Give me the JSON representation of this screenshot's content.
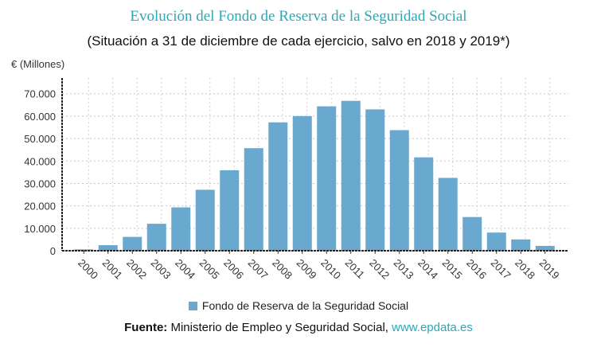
{
  "chart_data": {
    "type": "bar",
    "title": "Evolución del Fondo de Reserva de la Seguridad Social",
    "subtitle": "(Situación a 31 de diciembre de cada ejercicio, salvo en 2018 y 2019*)",
    "ylabel": "€ (Millones)",
    "xlabel": "",
    "categories": [
      "2000",
      "2001",
      "2002",
      "2003",
      "2004",
      "2005",
      "2006",
      "2007",
      "2008",
      "2009",
      "2010",
      "2011",
      "2012",
      "2013",
      "2014",
      "2015",
      "2016",
      "2017",
      "2018",
      "2019"
    ],
    "series": [
      {
        "name": "Fondo de Reserva de la Seguridad Social",
        "values": [
          601,
          2489,
          6168,
          12025,
          19330,
          27175,
          35880,
          45715,
          57223,
          60022,
          64375,
          66815,
          63008,
          53744,
          41634,
          32481,
          15020,
          8095,
          5043,
          2153
        ],
        "color": "#6aa9cf"
      }
    ],
    "ylim": [
      0,
      77000
    ],
    "yticks": [
      0,
      10000,
      20000,
      30000,
      40000,
      50000,
      60000,
      70000
    ],
    "ytick_labels": [
      "0",
      "10.000",
      "20.000",
      "30.000",
      "40.000",
      "50.000",
      "60.000",
      "70.000"
    ],
    "grid": true,
    "legend": "bottom"
  },
  "source": {
    "label": "Fuente:",
    "text": "Ministerio de Empleo y Seguridad Social,",
    "link": "www.epdata.es"
  }
}
